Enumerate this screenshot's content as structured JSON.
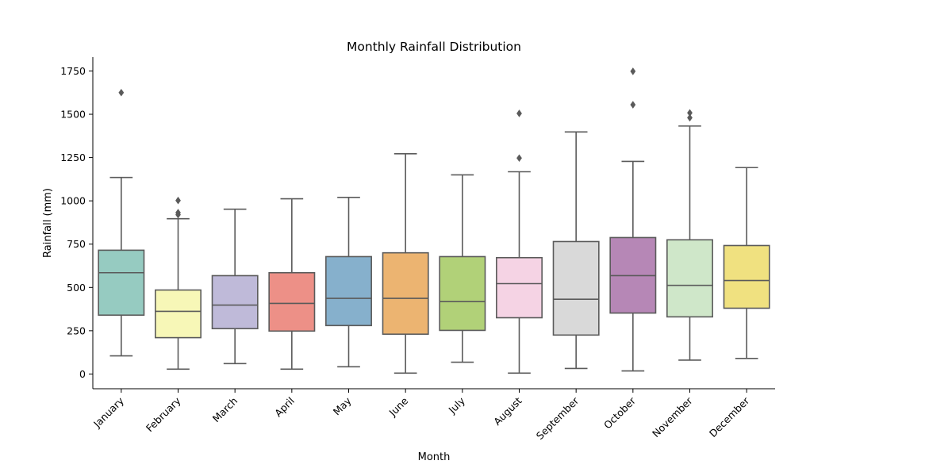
{
  "chart_data": {
    "type": "box",
    "title": "Monthly Rainfall Distribution",
    "xlabel": "Month",
    "ylabel": "Rainfall (mm)",
    "ylim": [
      -85,
      1830
    ],
    "yticks": [
      0,
      250,
      500,
      750,
      1000,
      1250,
      1500,
      1750
    ],
    "grid": false,
    "categories": [
      "January",
      "February",
      "March",
      "April",
      "May",
      "June",
      "July",
      "August",
      "September",
      "October",
      "November",
      "December"
    ],
    "colors": [
      "#96cbc1",
      "#f7f7b7",
      "#bfbad9",
      "#ed9087",
      "#86b0cc",
      "#ecb471",
      "#b1d178",
      "#f5d3e4",
      "#d9d9d9",
      "#b687b6",
      "#cfe7c9",
      "#f0e180"
    ],
    "boxes": [
      {
        "min": 105,
        "q1": 340,
        "median": 585,
        "q3": 715,
        "max": 1135,
        "outliers": [
          1625
        ]
      },
      {
        "min": 28,
        "q1": 210,
        "median": 362,
        "q3": 485,
        "max": 897,
        "outliers": [
          920,
          932,
          1002
        ]
      },
      {
        "min": 60,
        "q1": 262,
        "median": 398,
        "q3": 568,
        "max": 952,
        "outliers": []
      },
      {
        "min": 28,
        "q1": 248,
        "median": 408,
        "q3": 585,
        "max": 1012,
        "outliers": []
      },
      {
        "min": 42,
        "q1": 280,
        "median": 437,
        "q3": 678,
        "max": 1020,
        "outliers": []
      },
      {
        "min": 5,
        "q1": 230,
        "median": 437,
        "q3": 700,
        "max": 1272,
        "outliers": []
      },
      {
        "min": 68,
        "q1": 252,
        "median": 418,
        "q3": 678,
        "max": 1150,
        "outliers": []
      },
      {
        "min": 5,
        "q1": 325,
        "median": 522,
        "q3": 672,
        "max": 1168,
        "outliers": [
          1247,
          1505
        ]
      },
      {
        "min": 32,
        "q1": 225,
        "median": 432,
        "q3": 765,
        "max": 1398,
        "outliers": []
      },
      {
        "min": 18,
        "q1": 352,
        "median": 568,
        "q3": 788,
        "max": 1228,
        "outliers": [
          1555,
          1748
        ]
      },
      {
        "min": 80,
        "q1": 330,
        "median": 512,
        "q3": 775,
        "max": 1432,
        "outliers": [
          1480,
          1508
        ]
      },
      {
        "min": 90,
        "q1": 380,
        "median": 540,
        "q3": 742,
        "max": 1192,
        "outliers": []
      }
    ]
  }
}
